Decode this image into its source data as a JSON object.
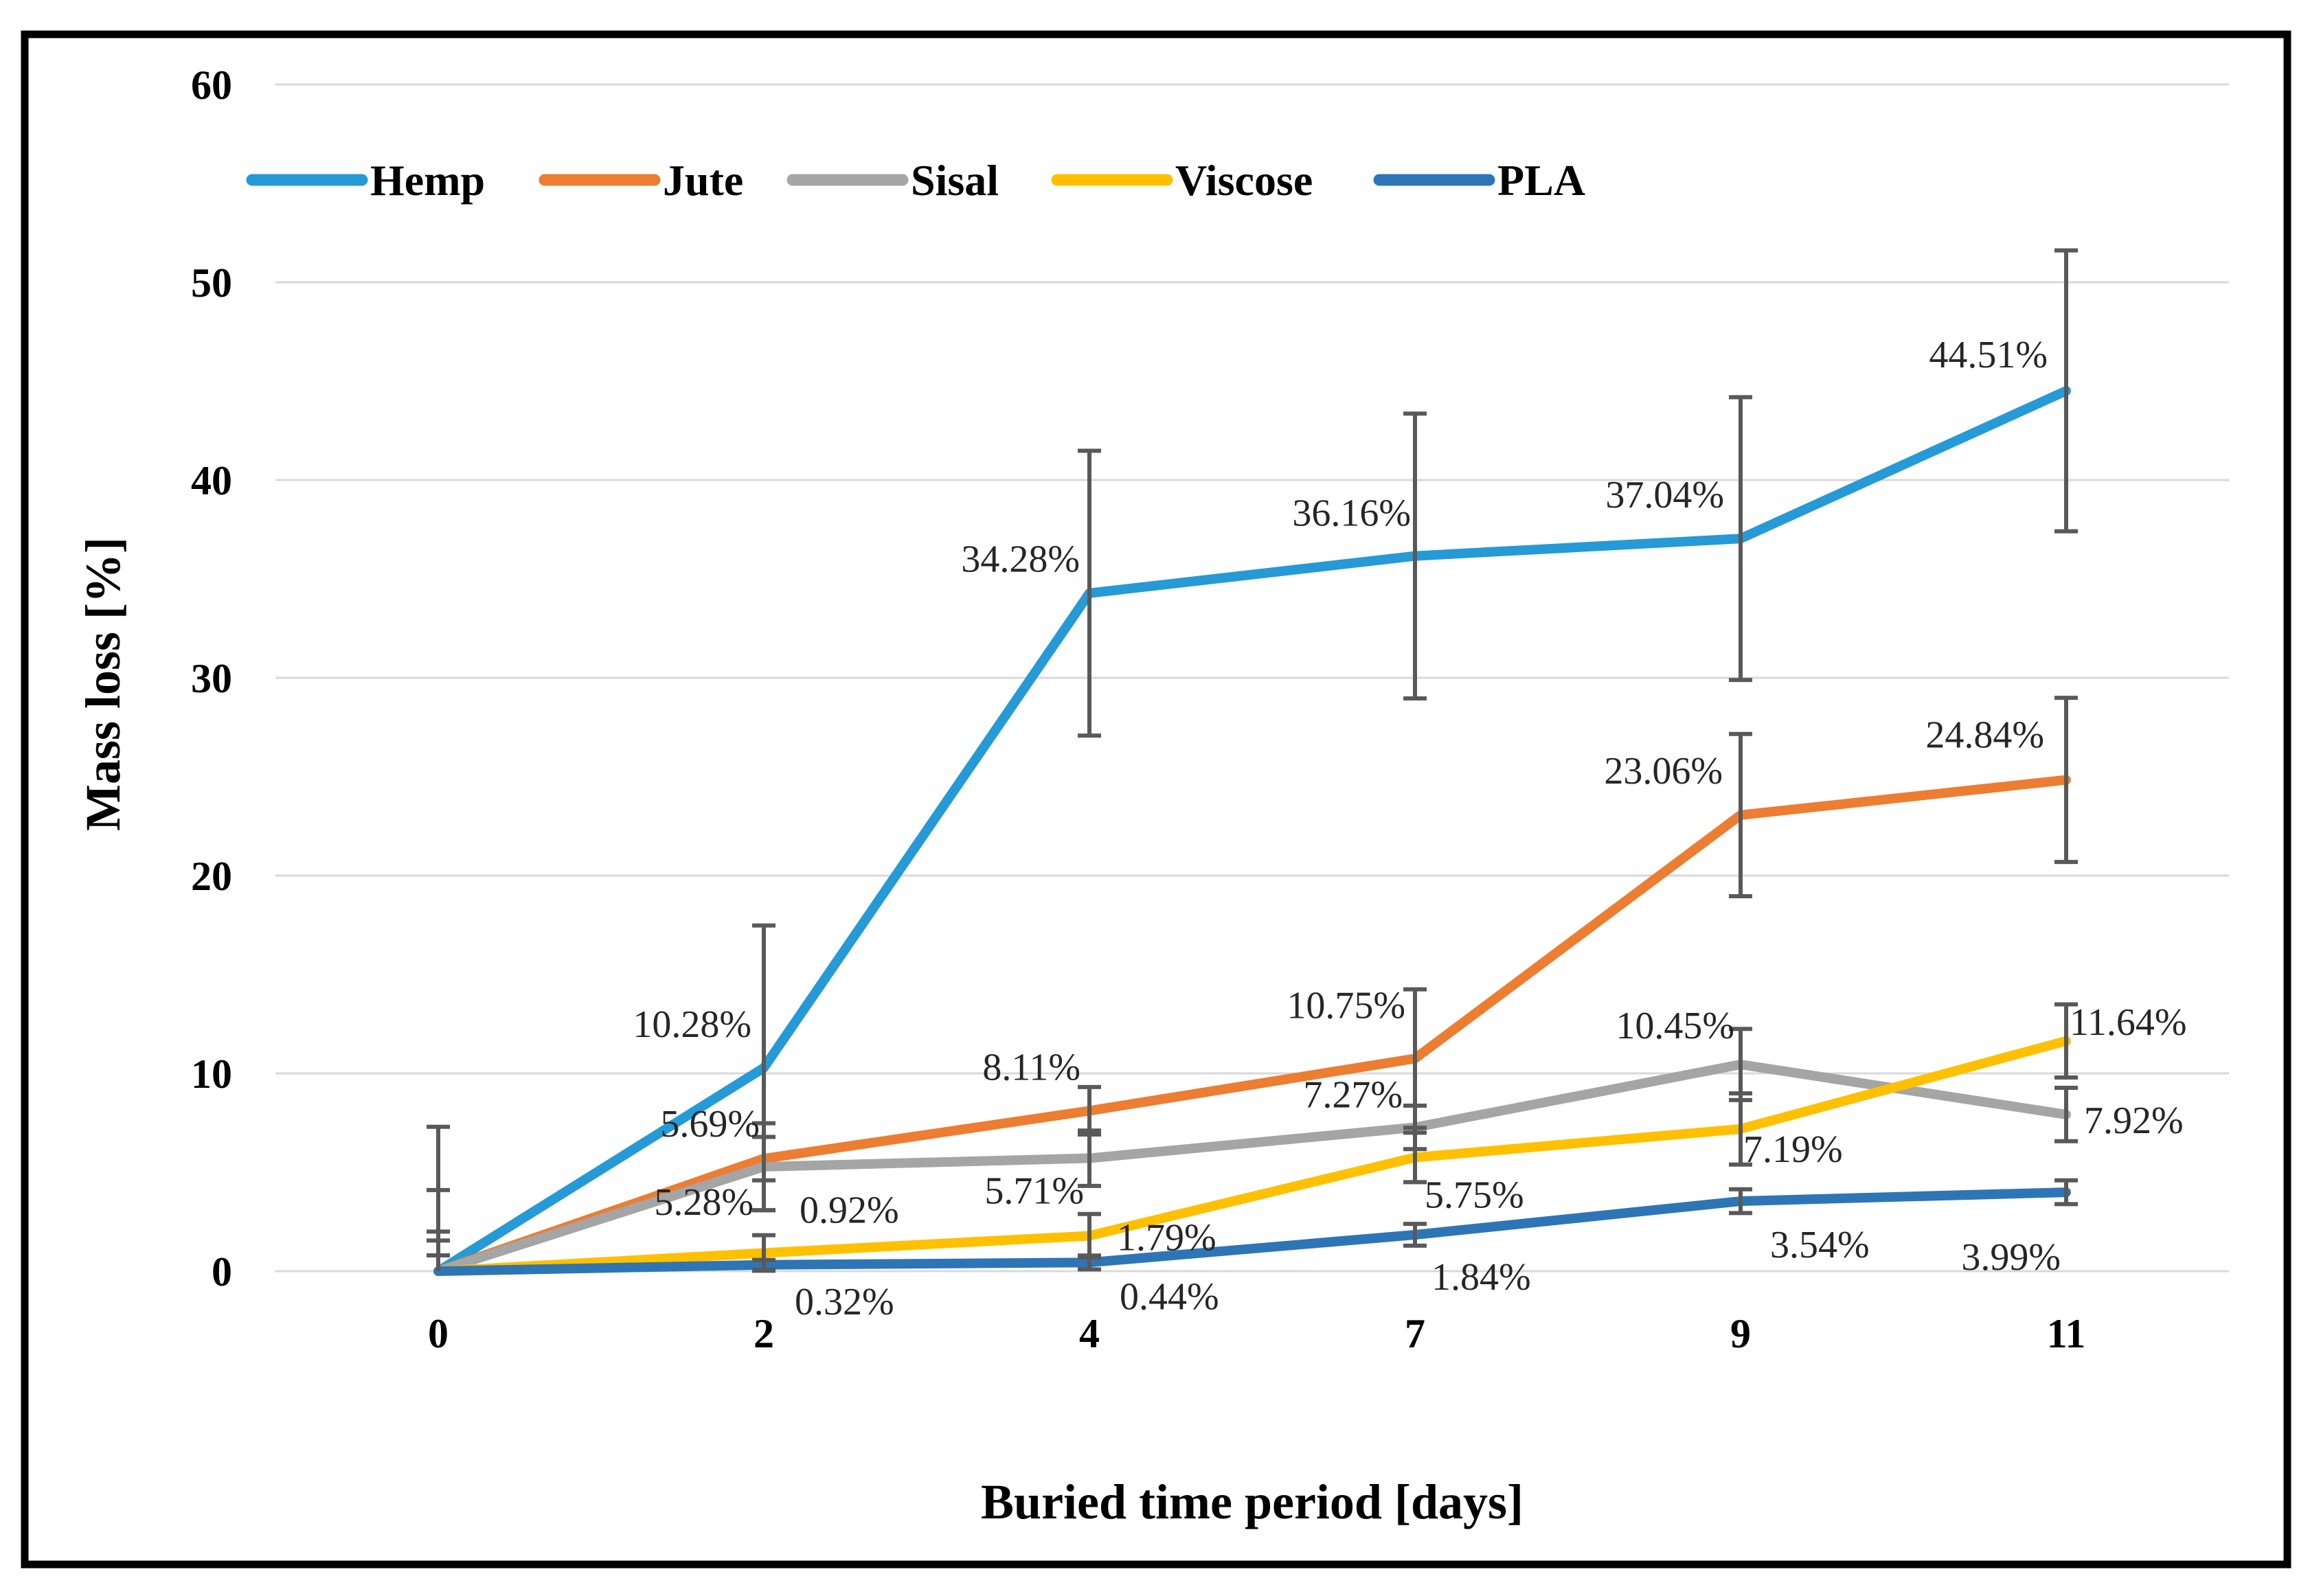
{
  "figure": {
    "background": "#FFFFFF",
    "border_color": "#000000",
    "gridline_color": "#D9D9D9",
    "error_bar_color": "#595959",
    "tick_text_color": "#000000",
    "data_label_color": "#262626"
  },
  "chart_data": {
    "type": "line",
    "title": "",
    "xlabel": "Buried time period [days]",
    "ylabel": "Mass loss [%]",
    "categories": [
      "0",
      "2",
      "4",
      "7",
      "9",
      "11"
    ],
    "y_ticks": [
      "0",
      "10",
      "20",
      "30",
      "40",
      "50",
      "60"
    ],
    "ylim": [
      0,
      60
    ],
    "grid": true,
    "legend_position": "top",
    "series": [
      {
        "name": "Hemp",
        "color": "#259AD7",
        "values": [
          0,
          10.28,
          34.28,
          36.16,
          37.04,
          44.51
        ],
        "errors": [
          7.3,
          7.2,
          7.2,
          7.2,
          7.15,
          7.1
        ],
        "labels": [
          "",
          "10.28%",
          "34.28%",
          "36.16%",
          "37.04%",
          "44.51%"
        ]
      },
      {
        "name": "Jute",
        "color": "#ED7D31",
        "values": [
          0,
          5.69,
          8.11,
          10.75,
          23.06,
          24.84
        ],
        "errors": [
          4.1,
          1.1,
          1.2,
          3.5,
          4.1,
          4.15
        ],
        "labels": [
          "",
          "5.69%",
          "8.11%",
          "10.75%",
          "23.06%",
          "24.84%"
        ]
      },
      {
        "name": "Sisal",
        "color": "#A5A5A5",
        "values": [
          0,
          5.28,
          5.71,
          7.27,
          10.45,
          7.92
        ],
        "errors": [
          2.0,
          2.2,
          1.4,
          1.1,
          1.8,
          1.35
        ],
        "labels": [
          "",
          "5.28%",
          "5.71%",
          "7.27%",
          "10.45%",
          "7.92%"
        ]
      },
      {
        "name": "Viscose",
        "color": "#FFC000",
        "values": [
          0,
          0.92,
          1.79,
          5.75,
          7.19,
          11.64
        ],
        "errors": [
          1.55,
          0.9,
          1.1,
          1.25,
          1.8,
          1.85
        ],
        "labels": [
          "",
          "0.92%",
          "1.79%",
          "5.75%",
          "7.19%",
          "11.64%"
        ]
      },
      {
        "name": "PLA",
        "color": "#2E75B6",
        "values": [
          0,
          0.32,
          0.44,
          1.84,
          3.54,
          3.99
        ],
        "errors": [
          0.8,
          0.25,
          0.35,
          0.55,
          0.6,
          0.6
        ],
        "labels": [
          "",
          "0.32%",
          "0.44%",
          "1.84%",
          "3.54%",
          "3.99%"
        ]
      }
    ]
  }
}
